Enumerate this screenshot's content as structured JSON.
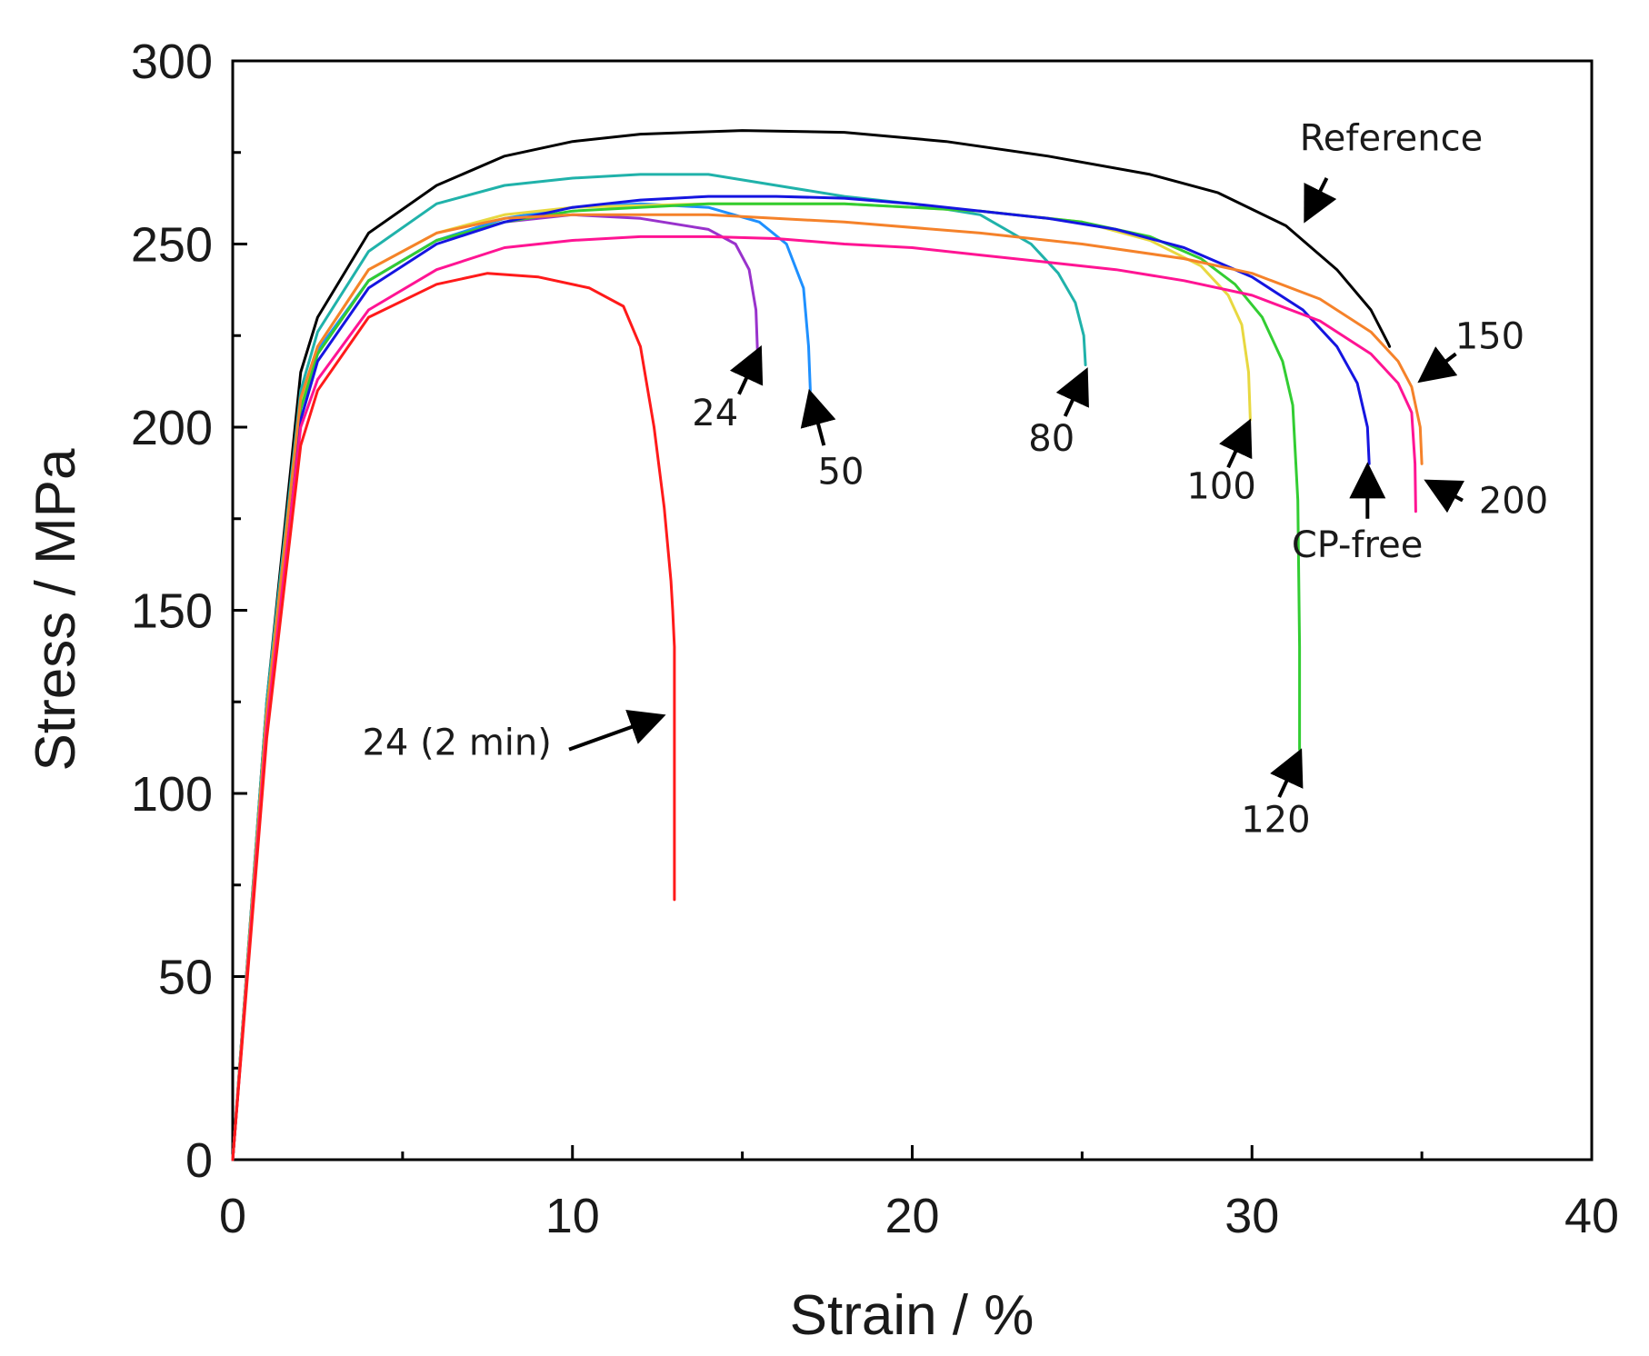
{
  "chart_data": {
    "type": "line",
    "title": "",
    "xlabel": "Strain / %",
    "ylabel": "Stress / MPa",
    "xlim": [
      0,
      40
    ],
    "ylim": [
      0,
      300
    ],
    "xticks": [
      0,
      10,
      20,
      30,
      40
    ],
    "yticks": [
      0,
      50,
      100,
      150,
      200,
      250,
      300
    ],
    "grid": false,
    "series": [
      {
        "name": "Reference",
        "color": "#000000",
        "x": [
          0,
          1.0,
          2.0,
          2.5,
          4,
          6,
          8,
          10,
          12,
          15,
          18,
          21,
          24,
          27,
          29,
          31,
          32.5,
          33.5,
          34.0,
          34.05
        ],
        "y": [
          0,
          125,
          215,
          230,
          253,
          266,
          274,
          278,
          280,
          281,
          280.5,
          278,
          274,
          269,
          264,
          255,
          243,
          232,
          223,
          222
        ]
      },
      {
        "name": "24",
        "color": "#9932cc",
        "x": [
          0,
          1.0,
          2.0,
          2.5,
          4,
          6,
          8,
          10,
          12,
          14,
          14.8,
          15.2,
          15.4,
          15.45
        ],
        "y": [
          0,
          120,
          205,
          220,
          240,
          251,
          256,
          258,
          257,
          254,
          250,
          243,
          232,
          220
        ]
      },
      {
        "name": "50",
        "color": "#1e90ff",
        "x": [
          0,
          1.0,
          2.0,
          2.5,
          4,
          6,
          8,
          10,
          12,
          14,
          15.5,
          16.3,
          16.8,
          16.95,
          17.0
        ],
        "y": [
          0,
          120,
          205,
          221,
          240,
          251,
          257,
          260,
          261,
          260,
          256,
          250,
          238,
          222,
          210
        ]
      },
      {
        "name": "80",
        "color": "#20b2aa",
        "x": [
          0,
          1.0,
          2.0,
          2.5,
          4,
          6,
          8,
          10,
          12,
          14,
          16,
          18,
          20,
          22,
          23.5,
          24.3,
          24.8,
          25.05,
          25.1
        ],
        "y": [
          0,
          125,
          210,
          226,
          248,
          261,
          266,
          268,
          269,
          269,
          266,
          263,
          261,
          258,
          250,
          242,
          234,
          225,
          217
        ]
      },
      {
        "name": "100",
        "color": "#e8d840",
        "x": [
          0,
          1.0,
          2.0,
          2.5,
          4,
          6,
          8,
          10,
          14,
          18,
          22,
          25,
          27,
          28.5,
          29.3,
          29.7,
          29.9,
          29.95
        ],
        "y": [
          0,
          122,
          207,
          222,
          243,
          253,
          258,
          260,
          261,
          261,
          259,
          256,
          251,
          244,
          236,
          228,
          215,
          202
        ]
      },
      {
        "name": "120",
        "color": "#32cd32",
        "x": [
          0,
          1.0,
          2.0,
          2.5,
          4,
          6,
          8,
          10,
          14,
          18,
          22,
          25,
          27,
          28.5,
          29.5,
          30.3,
          30.9,
          31.2,
          31.35,
          31.4,
          31.4
        ],
        "y": [
          0,
          120,
          205,
          220,
          240,
          251,
          256,
          259,
          261,
          261,
          259,
          256,
          252,
          246,
          239,
          230,
          218,
          206,
          180,
          140,
          112
        ]
      },
      {
        "name": "CP-free",
        "color": "#1515e0",
        "x": [
          0,
          1.0,
          2.0,
          2.5,
          4,
          6,
          8,
          10,
          12,
          14,
          16,
          18,
          20,
          22,
          24,
          26,
          28,
          30,
          31.5,
          32.5,
          33.1,
          33.4,
          33.45
        ],
        "y": [
          0,
          118,
          202,
          218,
          238,
          250,
          256,
          260,
          262,
          263,
          263,
          262.5,
          261,
          259,
          257,
          254,
          249,
          241,
          232,
          222,
          212,
          200,
          190
        ]
      },
      {
        "name": "150",
        "color": "#f5822a",
        "x": [
          0,
          1.0,
          2.0,
          2.5,
          4,
          6,
          8,
          10,
          14,
          18,
          22,
          25,
          28,
          30,
          32,
          33.5,
          34.3,
          34.7,
          34.95,
          35.0
        ],
        "y": [
          0,
          122,
          208,
          222,
          243,
          253,
          257,
          258,
          258,
          256,
          253,
          250,
          246,
          242,
          235,
          226,
          218,
          211,
          200,
          190
        ]
      },
      {
        "name": "200",
        "color": "#ff1493",
        "x": [
          0,
          1.0,
          2.0,
          2.5,
          4,
          6,
          8,
          10,
          12,
          14,
          16,
          18,
          20,
          22,
          24,
          26,
          28,
          30,
          32,
          33.5,
          34.3,
          34.7,
          34.8,
          34.82
        ],
        "y": [
          0,
          118,
          200,
          213,
          232,
          243,
          249,
          251,
          252,
          252,
          251.5,
          250,
          249,
          247,
          245,
          243,
          240,
          236,
          229,
          220,
          212,
          204,
          190,
          177
        ]
      },
      {
        "name": "24 (2 min)",
        "color": "#ff1a1a",
        "x": [
          0,
          1.0,
          2.0,
          2.5,
          4,
          6,
          7.5,
          9,
          10.5,
          11.5,
          12.0,
          12.4,
          12.7,
          12.9,
          12.95,
          13.0,
          13.0,
          13.0
        ],
        "y": [
          0,
          115,
          195,
          210,
          230,
          239,
          242,
          241,
          238,
          233,
          222,
          200,
          178,
          158,
          150,
          140,
          100,
          71
        ]
      }
    ],
    "annotations": [
      {
        "text": "Reference",
        "x": 34.1,
        "y": 275.5,
        "arrow_from": [
          32.2,
          268
        ],
        "arrow_to": [
          31.6,
          257
        ]
      },
      {
        "text": "24",
        "x": 14.2,
        "y": 200.5,
        "arrow_from": [
          14.9,
          209
        ],
        "arrow_to": [
          15.5,
          221
        ]
      },
      {
        "text": "50",
        "x": 17.9,
        "y": 184.5,
        "arrow_from": [
          17.4,
          195
        ],
        "arrow_to": [
          17.0,
          209
        ]
      },
      {
        "text": "80",
        "x": 24.1,
        "y": 193.5,
        "arrow_from": [
          24.5,
          203
        ],
        "arrow_to": [
          25.1,
          215
        ]
      },
      {
        "text": "100",
        "x": 29.1,
        "y": 180.5,
        "arrow_from": [
          29.3,
          189
        ],
        "arrow_to": [
          29.9,
          201
        ]
      },
      {
        "text": "120",
        "x": 30.7,
        "y": 89.5,
        "arrow_from": [
          30.8,
          99
        ],
        "arrow_to": [
          31.4,
          111
        ]
      },
      {
        "text": "CP-free",
        "x": 33.1,
        "y": 164.5,
        "arrow_from": [
          33.4,
          175
        ],
        "arrow_to": [
          33.4,
          189
        ]
      },
      {
        "text": "150",
        "x": 37.0,
        "y": 221.5,
        "arrow_from": [
          36.0,
          220
        ],
        "arrow_to": [
          35.0,
          213
        ]
      },
      {
        "text": "200",
        "x": 37.7,
        "y": 176.5,
        "arrow_from": [
          36.2,
          180
        ],
        "arrow_to": [
          35.2,
          185
        ]
      },
      {
        "text": "24 (2 min)",
        "x": 6.6,
        "y": 110.5,
        "arrow_from": [
          9.9,
          112
        ],
        "arrow_to": [
          12.6,
          121
        ]
      }
    ]
  }
}
